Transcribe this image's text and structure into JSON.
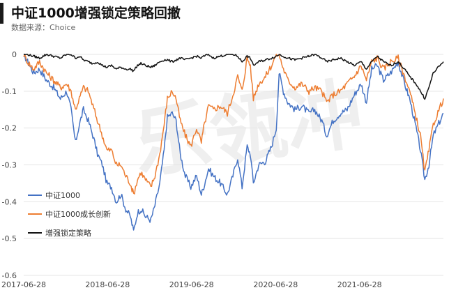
{
  "title": "中证1000增强锁定策略回撤",
  "source": "数据来源：Choice",
  "watermark": "乐瓴冲",
  "chart_data": {
    "type": "line",
    "ylim": [
      -0.6,
      0
    ],
    "yticks": [
      "0",
      "-0.1",
      "-0.2",
      "-0.3",
      "-0.4",
      "-0.5",
      "-0.6"
    ],
    "xlim": [
      "2017-06-28",
      "2022-06-28"
    ],
    "xticks": [
      "2017-06-28",
      "2018-06-28",
      "2019-06-28",
      "2020-06-28",
      "2021-06-28"
    ],
    "legend_position": "lower-left",
    "series": [
      {
        "name": "中证1000",
        "color": "#4472c4",
        "points": [
          [
            "2017-06-28",
            0
          ],
          [
            "2017-07-15",
            -0.02
          ],
          [
            "2017-08-10",
            -0.05
          ],
          [
            "2017-09-05",
            -0.04
          ],
          [
            "2017-10-05",
            -0.07
          ],
          [
            "2017-11-05",
            -0.09
          ],
          [
            "2017-12-05",
            -0.12
          ],
          [
            "2018-01-01",
            -0.1
          ],
          [
            "2018-01-20",
            -0.15
          ],
          [
            "2018-02-08",
            -0.24
          ],
          [
            "2018-02-25",
            -0.19
          ],
          [
            "2018-03-15",
            -0.15
          ],
          [
            "2018-04-05",
            -0.18
          ],
          [
            "2018-04-25",
            -0.22
          ],
          [
            "2018-05-15",
            -0.27
          ],
          [
            "2018-06-05",
            -0.3
          ],
          [
            "2018-06-25",
            -0.35
          ],
          [
            "2018-07-15",
            -0.36
          ],
          [
            "2018-08-05",
            -0.4
          ],
          [
            "2018-08-25",
            -0.38
          ],
          [
            "2018-09-15",
            -0.42
          ],
          [
            "2018-10-05",
            -0.44
          ],
          [
            "2018-10-19",
            -0.48
          ],
          [
            "2018-11-05",
            -0.43
          ],
          [
            "2018-11-20",
            -0.42
          ],
          [
            "2018-12-10",
            -0.44
          ],
          [
            "2019-01-02",
            -0.45
          ],
          [
            "2019-01-20",
            -0.41
          ],
          [
            "2019-02-10",
            -0.35
          ],
          [
            "2019-03-01",
            -0.26
          ],
          [
            "2019-03-15",
            -0.17
          ],
          [
            "2019-04-05",
            -0.16
          ],
          [
            "2019-04-22",
            -0.18
          ],
          [
            "2019-05-10",
            -0.27
          ],
          [
            "2019-06-01",
            -0.33
          ],
          [
            "2019-06-25",
            -0.36
          ],
          [
            "2019-07-20",
            -0.33
          ],
          [
            "2019-08-10",
            -0.38
          ],
          [
            "2019-08-20",
            -0.36
          ],
          [
            "2019-09-10",
            -0.31
          ],
          [
            "2019-10-01",
            -0.33
          ],
          [
            "2019-11-01",
            -0.35
          ],
          [
            "2019-12-01",
            -0.38
          ],
          [
            "2019-12-25",
            -0.33
          ],
          [
            "2020-01-15",
            -0.28
          ],
          [
            "2020-02-03",
            -0.36
          ],
          [
            "2020-02-25",
            -0.25
          ],
          [
            "2020-03-10",
            -0.27
          ],
          [
            "2020-03-23",
            -0.35
          ],
          [
            "2020-04-15",
            -0.3
          ],
          [
            "2020-05-15",
            -0.29
          ],
          [
            "2020-06-10",
            -0.25
          ],
          [
            "2020-07-01",
            -0.2
          ],
          [
            "2020-07-13",
            -0.05
          ],
          [
            "2020-08-01",
            -0.1
          ],
          [
            "2020-08-20",
            -0.13
          ],
          [
            "2020-09-20",
            -0.15
          ],
          [
            "2020-10-20",
            -0.14
          ],
          [
            "2020-11-20",
            -0.16
          ],
          [
            "2020-12-15",
            -0.15
          ],
          [
            "2021-01-15",
            -0.18
          ],
          [
            "2021-02-05",
            -0.22
          ],
          [
            "2021-03-05",
            -0.18
          ],
          [
            "2021-04-05",
            -0.16
          ],
          [
            "2021-05-05",
            -0.15
          ],
          [
            "2021-06-05",
            -0.11
          ],
          [
            "2021-07-05",
            -0.08
          ],
          [
            "2021-07-28",
            -0.13
          ],
          [
            "2021-08-20",
            -0.04
          ],
          [
            "2021-09-13",
            -0.03
          ],
          [
            "2021-10-10",
            -0.07
          ],
          [
            "2021-11-10",
            -0.05
          ],
          [
            "2021-12-13",
            -0.02
          ],
          [
            "2022-01-10",
            -0.08
          ],
          [
            "2022-02-01",
            -0.12
          ],
          [
            "2022-03-01",
            -0.2
          ],
          [
            "2022-03-20",
            -0.26
          ],
          [
            "2022-04-08",
            -0.34
          ],
          [
            "2022-04-26",
            -0.3
          ],
          [
            "2022-05-15",
            -0.22
          ],
          [
            "2022-06-28",
            -0.16
          ]
        ]
      },
      {
        "name": "中证1000成长创新",
        "color": "#ed7d31",
        "points": [
          [
            "2017-06-28",
            0
          ],
          [
            "2017-07-15",
            -0.02
          ],
          [
            "2017-08-10",
            -0.04
          ],
          [
            "2017-09-05",
            -0.02
          ],
          [
            "2017-10-05",
            -0.05
          ],
          [
            "2017-11-05",
            -0.07
          ],
          [
            "2017-12-05",
            -0.09
          ],
          [
            "2018-01-01",
            -0.08
          ],
          [
            "2018-01-20",
            -0.1
          ],
          [
            "2018-02-08",
            -0.15
          ],
          [
            "2018-02-25",
            -0.12
          ],
          [
            "2018-03-15",
            -0.09
          ],
          [
            "2018-04-05",
            -0.1
          ],
          [
            "2018-04-25",
            -0.14
          ],
          [
            "2018-05-15",
            -0.18
          ],
          [
            "2018-06-05",
            -0.22
          ],
          [
            "2018-06-25",
            -0.26
          ],
          [
            "2018-07-15",
            -0.26
          ],
          [
            "2018-08-05",
            -0.3
          ],
          [
            "2018-08-25",
            -0.3
          ],
          [
            "2018-09-15",
            -0.33
          ],
          [
            "2018-10-05",
            -0.35
          ],
          [
            "2018-10-19",
            -0.38
          ],
          [
            "2018-11-05",
            -0.34
          ],
          [
            "2018-11-20",
            -0.32
          ],
          [
            "2018-12-10",
            -0.34
          ],
          [
            "2019-01-02",
            -0.36
          ],
          [
            "2019-01-20",
            -0.33
          ],
          [
            "2019-02-10",
            -0.27
          ],
          [
            "2019-03-01",
            -0.19
          ],
          [
            "2019-03-15",
            -0.12
          ],
          [
            "2019-04-05",
            -0.1
          ],
          [
            "2019-04-22",
            -0.12
          ],
          [
            "2019-05-10",
            -0.18
          ],
          [
            "2019-06-01",
            -0.22
          ],
          [
            "2019-06-25",
            -0.25
          ],
          [
            "2019-07-20",
            -0.2
          ],
          [
            "2019-08-10",
            -0.24
          ],
          [
            "2019-08-20",
            -0.2
          ],
          [
            "2019-09-10",
            -0.14
          ],
          [
            "2019-10-01",
            -0.15
          ],
          [
            "2019-11-01",
            -0.14
          ],
          [
            "2019-12-01",
            -0.16
          ],
          [
            "2019-12-25",
            -0.11
          ],
          [
            "2020-01-15",
            -0.06
          ],
          [
            "2020-02-03",
            -0.1
          ],
          [
            "2020-02-25",
            -0.01
          ],
          [
            "2020-03-10",
            -0.03
          ],
          [
            "2020-03-23",
            -0.12
          ],
          [
            "2020-04-15",
            -0.08
          ],
          [
            "2020-05-15",
            -0.06
          ],
          [
            "2020-06-10",
            -0.03
          ],
          [
            "2020-07-01",
            0
          ],
          [
            "2020-07-13",
            0
          ],
          [
            "2020-08-01",
            -0.04
          ],
          [
            "2020-08-20",
            -0.07
          ],
          [
            "2020-09-20",
            -0.09
          ],
          [
            "2020-10-20",
            -0.08
          ],
          [
            "2020-11-20",
            -0.1
          ],
          [
            "2020-12-15",
            -0.09
          ],
          [
            "2021-01-15",
            -0.1
          ],
          [
            "2021-02-05",
            -0.13
          ],
          [
            "2021-03-05",
            -0.11
          ],
          [
            "2021-04-05",
            -0.1
          ],
          [
            "2021-05-05",
            -0.08
          ],
          [
            "2021-06-05",
            -0.06
          ],
          [
            "2021-07-05",
            -0.03
          ],
          [
            "2021-07-28",
            -0.07
          ],
          [
            "2021-08-20",
            -0.02
          ],
          [
            "2021-09-13",
            -0.01
          ],
          [
            "2021-10-10",
            -0.04
          ],
          [
            "2021-11-10",
            -0.02
          ],
          [
            "2021-12-13",
            -0.01
          ],
          [
            "2022-01-10",
            -0.06
          ],
          [
            "2022-02-01",
            -0.1
          ],
          [
            "2022-03-01",
            -0.17
          ],
          [
            "2022-03-20",
            -0.22
          ],
          [
            "2022-04-08",
            -0.32
          ],
          [
            "2022-04-26",
            -0.26
          ],
          [
            "2022-05-15",
            -0.19
          ],
          [
            "2022-06-28",
            -0.12
          ]
        ]
      },
      {
        "name": "增强锁定策略",
        "color": "#111111",
        "points": [
          [
            "2017-06-28",
            0
          ],
          [
            "2017-07-15",
            0
          ],
          [
            "2017-08-10",
            -0.005
          ],
          [
            "2017-09-05",
            -0.01
          ],
          [
            "2017-10-05",
            0
          ],
          [
            "2017-11-05",
            -0.005
          ],
          [
            "2017-12-05",
            -0.01
          ],
          [
            "2018-01-01",
            0
          ],
          [
            "2018-01-20",
            0
          ],
          [
            "2018-02-08",
            -0.01
          ],
          [
            "2018-02-25",
            -0.005
          ],
          [
            "2018-03-15",
            -0.015
          ],
          [
            "2018-04-05",
            -0.02
          ],
          [
            "2018-04-25",
            -0.025
          ],
          [
            "2018-05-15",
            -0.02
          ],
          [
            "2018-06-05",
            -0.03
          ],
          [
            "2018-06-25",
            -0.035
          ],
          [
            "2018-07-15",
            -0.03
          ],
          [
            "2018-08-05",
            -0.04
          ],
          [
            "2018-08-25",
            -0.035
          ],
          [
            "2018-09-15",
            -0.04
          ],
          [
            "2018-10-05",
            -0.04
          ],
          [
            "2018-10-19",
            -0.045
          ],
          [
            "2018-11-05",
            -0.03
          ],
          [
            "2018-11-20",
            -0.025
          ],
          [
            "2018-12-10",
            -0.03
          ],
          [
            "2019-01-02",
            -0.035
          ],
          [
            "2019-01-20",
            -0.03
          ],
          [
            "2019-02-10",
            -0.02
          ],
          [
            "2019-03-01",
            -0.015
          ],
          [
            "2019-03-15",
            -0.015
          ],
          [
            "2019-04-05",
            -0.02
          ],
          [
            "2019-04-22",
            -0.015
          ],
          [
            "2019-05-10",
            -0.01
          ],
          [
            "2019-06-01",
            -0.015
          ],
          [
            "2019-06-25",
            -0.01
          ],
          [
            "2019-07-20",
            -0.005
          ],
          [
            "2019-08-10",
            -0.01
          ],
          [
            "2019-08-20",
            -0.005
          ],
          [
            "2019-09-10",
            0
          ],
          [
            "2019-10-01",
            -0.01
          ],
          [
            "2019-11-01",
            -0.005
          ],
          [
            "2019-12-01",
            0
          ],
          [
            "2019-12-25",
            0
          ],
          [
            "2020-01-15",
            -0.005
          ],
          [
            "2020-02-03",
            -0.02
          ],
          [
            "2020-02-25",
            -0.005
          ],
          [
            "2020-03-10",
            -0.01
          ],
          [
            "2020-03-23",
            -0.03
          ],
          [
            "2020-04-15",
            -0.02
          ],
          [
            "2020-05-15",
            -0.015
          ],
          [
            "2020-06-10",
            -0.01
          ],
          [
            "2020-07-01",
            -0.005
          ],
          [
            "2020-07-13",
            0
          ],
          [
            "2020-08-01",
            -0.005
          ],
          [
            "2020-08-20",
            -0.01
          ],
          [
            "2020-09-20",
            -0.015
          ],
          [
            "2020-10-20",
            -0.01
          ],
          [
            "2020-11-20",
            -0.005
          ],
          [
            "2020-12-15",
            0
          ],
          [
            "2021-01-15",
            -0.01
          ],
          [
            "2021-02-05",
            -0.02
          ],
          [
            "2021-03-05",
            -0.015
          ],
          [
            "2021-04-05",
            -0.01
          ],
          [
            "2021-05-05",
            -0.02
          ],
          [
            "2021-06-05",
            -0.03
          ],
          [
            "2021-07-05",
            -0.02
          ],
          [
            "2021-07-28",
            -0.04
          ],
          [
            "2021-08-20",
            -0.02
          ],
          [
            "2021-09-13",
            -0.005
          ],
          [
            "2021-10-10",
            -0.02
          ],
          [
            "2021-11-10",
            -0.03
          ],
          [
            "2021-12-13",
            -0.02
          ],
          [
            "2022-01-10",
            -0.04
          ],
          [
            "2022-02-01",
            -0.06
          ],
          [
            "2022-03-01",
            -0.08
          ],
          [
            "2022-03-20",
            -0.1
          ],
          [
            "2022-04-08",
            -0.12
          ],
          [
            "2022-04-26",
            -0.09
          ],
          [
            "2022-05-15",
            -0.05
          ],
          [
            "2022-06-28",
            -0.02
          ]
        ]
      }
    ]
  }
}
